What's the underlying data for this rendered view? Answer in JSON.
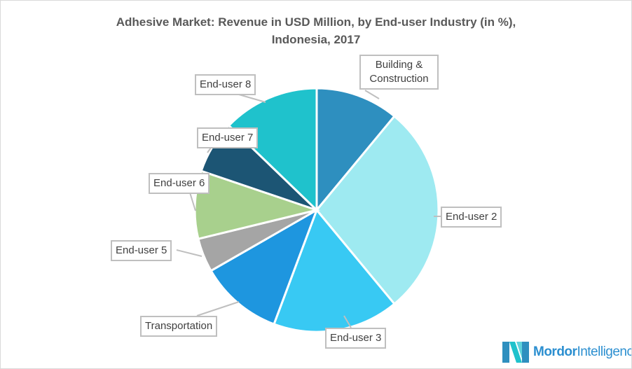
{
  "chart_data": {
    "type": "pie",
    "title": "Adhesive Market: Revenue in USD Million, by End-user Industry (in %), Indonesia, 2017",
    "title_line1": "Adhesive Market: Revenue in USD Million, by End-user Industry (in %),",
    "title_line2": "Indonesia, 2017",
    "categories": [
      "Building & Construction",
      "End-user 2",
      "End-user 3",
      "Transportation",
      "End-user 5",
      "End-user 6",
      "End-user 7",
      "End-user 8"
    ],
    "values": [
      11,
      28,
      16.7,
      11,
      4.5,
      9,
      7,
      12.8
    ],
    "colors": [
      "#2e8fbf",
      "#9eeaf1",
      "#38c9f3",
      "#1e96df",
      "#a5a5a5",
      "#a8d08d",
      "#1c5574",
      "#1fc2cc"
    ],
    "start_angle": "12 o'clock",
    "direction": "clockwise",
    "legend": "none (callout labels)"
  },
  "brand": {
    "name_bold": "Mordor",
    "name_rest": "Intelligence"
  }
}
